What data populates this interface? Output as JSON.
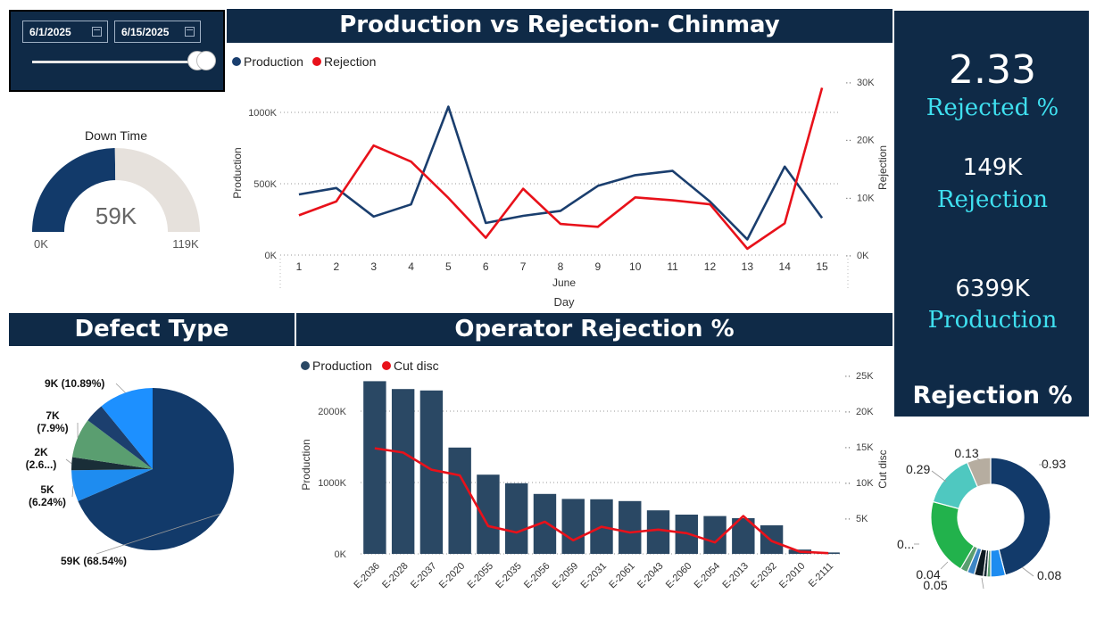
{
  "slicer": {
    "start_date": "6/1/2025",
    "end_date": "6/15/2025"
  },
  "gauge": {
    "title": "Down Time",
    "value_label": "59K",
    "min_label": "0K",
    "max_label": "119K",
    "value": 59,
    "max": 119
  },
  "main_title": "Production vs Rejection- Chinmay",
  "kpis": {
    "rejected_pct_value": "2.33",
    "rejected_pct_label": "Rejected %",
    "rejection_value": "149K",
    "rejection_label": "Rejection",
    "production_value": "6399K",
    "production_label": "Production"
  },
  "section_titles": {
    "defect_type": "Defect Type",
    "operator_rejection": "Operator Rejection %",
    "rejection_pct": "Rejection %"
  },
  "colors": {
    "navy": "#0f2a47",
    "production": "#1a3e6e",
    "rejection": "#e8111a",
    "bar": "#2a4864",
    "kpi_label": "#3fe0f0"
  },
  "chart_data": [
    {
      "type": "line",
      "legend": [
        "Production",
        "Rejection"
      ],
      "legend_position": "top-left",
      "x": [
        "1",
        "2",
        "3",
        "4",
        "5",
        "6",
        "7",
        "8",
        "9",
        "10",
        "11",
        "12",
        "13",
        "14",
        "15"
      ],
      "xlabel": "Day",
      "x_group_label": "June",
      "ylabel": "Production",
      "y2label": "Rejection",
      "y_ticks": [
        "0K",
        "500K",
        "1000K"
      ],
      "y2_ticks": [
        "0K",
        "10K",
        "20K",
        "30K"
      ],
      "ylim": [
        0,
        1250
      ],
      "y2lim": [
        0,
        30
      ],
      "grid": true,
      "series": [
        {
          "name": "Production",
          "axis": "left",
          "values": [
            425,
            470,
            270,
            355,
            1040,
            225,
            275,
            310,
            485,
            560,
            590,
            375,
            110,
            620,
            260
          ]
        },
        {
          "name": "Rejection",
          "axis": "right",
          "values": [
            6.9,
            9.3,
            19.0,
            16.2,
            9.9,
            3.0,
            11.5,
            5.4,
            4.9,
            10.0,
            9.5,
            8.8,
            1.1,
            5.5,
            29.0
          ]
        }
      ]
    },
    {
      "type": "pie",
      "title": "Defect Type",
      "slices": [
        {
          "label": "59K (68.54%)",
          "value": 68.54,
          "color": "#123a6a"
        },
        {
          "label": "5K (6.24%)",
          "value": 6.24,
          "color": "#1e8cf0"
        },
        {
          "label": "2K (2.6...)",
          "value": 2.6,
          "color": "#1a2e38"
        },
        {
          "label": "7K (7.9%)",
          "value": 7.9,
          "color": "#5a9e70"
        },
        {
          "label": "",
          "value": 3.83,
          "color": "#1c3f6e"
        },
        {
          "label": "9K (10.89%)",
          "value": 10.89,
          "color": "#1d90ff"
        }
      ]
    },
    {
      "type": "bar",
      "title": "Operator Rejection %",
      "legend": [
        "Production",
        "Cut disc"
      ],
      "legend_position": "top-left",
      "categories": [
        "E-2036",
        "E-2028",
        "E-2037",
        "E-2020",
        "E-2055",
        "E-2035",
        "E-2056",
        "E-2059",
        "E-2031",
        "E-2061",
        "E-2043",
        "E-2060",
        "E-2054",
        "E-2013",
        "E-2032",
        "E-2010",
        "E-2111"
      ],
      "ylabel": "Production",
      "y2label": "Cut disc",
      "y_ticks": [
        "0K",
        "1000K",
        "2000K"
      ],
      "y2_ticks": [
        "5K",
        "10K",
        "15K",
        "20K",
        "25K"
      ],
      "ylim": [
        0,
        2500
      ],
      "y2lim": [
        0,
        25
      ],
      "grid": true,
      "series": [
        {
          "name": "Production",
          "kind": "bar",
          "axis": "left",
          "values": [
            2420,
            2310,
            2290,
            1490,
            1110,
            990,
            840,
            770,
            765,
            740,
            610,
            550,
            530,
            500,
            400,
            60,
            20
          ]
        },
        {
          "name": "Cut disc",
          "kind": "line",
          "axis": "right",
          "values": [
            14.8,
            14.2,
            11.8,
            11.0,
            3.9,
            3.0,
            4.5,
            1.9,
            3.8,
            3.0,
            3.4,
            2.9,
            1.6,
            5.3,
            1.8,
            0.3,
            0.1
          ]
        }
      ]
    },
    {
      "type": "pie",
      "title": "Rejection %",
      "donut": true,
      "slices": [
        {
          "label": "0.93",
          "value": 0.93,
          "color": "#123a6a"
        },
        {
          "label": "0.08",
          "value": 0.08,
          "color": "#1e8cf0"
        },
        {
          "label": "",
          "value": 0.02,
          "color": "#5a9e70"
        },
        {
          "label": "",
          "value": 0.02,
          "color": "#1a2e38"
        },
        {
          "label": "0.05",
          "value": 0.05,
          "color": "#0d1a22"
        },
        {
          "label": "0.04",
          "value": 0.04,
          "color": "#3d86c6"
        },
        {
          "label": "",
          "value": 0.04,
          "color": "#5a9e70"
        },
        {
          "label": "0...",
          "value": 0.42,
          "color": "#22b24c"
        },
        {
          "label": "0.29",
          "value": 0.29,
          "color": "#4fc8c0"
        },
        {
          "label": "0.13",
          "value": 0.13,
          "color": "#b6ada0"
        }
      ]
    }
  ]
}
